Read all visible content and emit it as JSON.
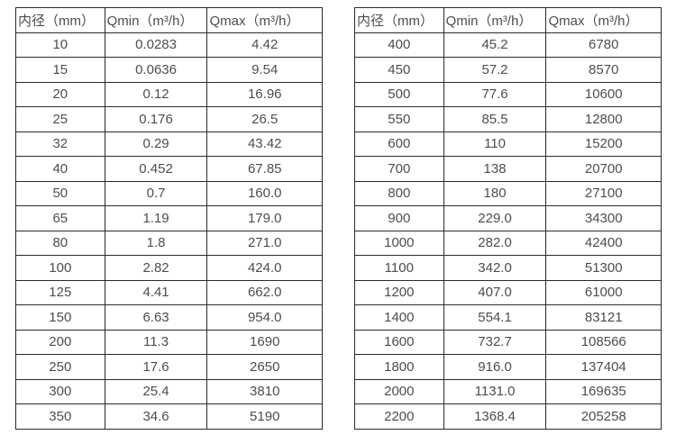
{
  "page": {
    "background_color": "#ffffff",
    "text_color": "#4d4d4d",
    "border_color": "#2b2b2b"
  },
  "tables": [
    {
      "name": "flow-spec-table-small-diameters",
      "headers": [
        "内径（mm）",
        "Qmin（m³/h）",
        "Qmax（m³/h）"
      ],
      "rows": [
        [
          "10",
          "0.0283",
          "4.42"
        ],
        [
          "15",
          "0.0636",
          "9.54"
        ],
        [
          "20",
          "0.12",
          "16.96"
        ],
        [
          "25",
          "0.176",
          "26.5"
        ],
        [
          "32",
          "0.29",
          "43.42"
        ],
        [
          "40",
          "0.452",
          "67.85"
        ],
        [
          "50",
          "0.7",
          "160.0"
        ],
        [
          "65",
          "1.19",
          "179.0"
        ],
        [
          "80",
          "1.8",
          "271.0"
        ],
        [
          "100",
          "2.82",
          "424.0"
        ],
        [
          "125",
          "4.41",
          "662.0"
        ],
        [
          "150",
          "6.63",
          "954.0"
        ],
        [
          "200",
          "11.3",
          "1690"
        ],
        [
          "250",
          "17.6",
          "2650"
        ],
        [
          "300",
          "25.4",
          "3810"
        ],
        [
          "350",
          "34.6",
          "5190"
        ]
      ]
    },
    {
      "name": "flow-spec-table-large-diameters",
      "headers": [
        "内径（mm）",
        "Qmin（m³/h）",
        "Qmax（m³/h）"
      ],
      "rows": [
        [
          "400",
          "45.2",
          "6780"
        ],
        [
          "450",
          "57.2",
          "8570"
        ],
        [
          "500",
          "77.6",
          "10600"
        ],
        [
          "550",
          "85.5",
          "12800"
        ],
        [
          "600",
          "110",
          "15200"
        ],
        [
          "700",
          "138",
          "20700"
        ],
        [
          "800",
          "180",
          "27100"
        ],
        [
          "900",
          "229.0",
          "34300"
        ],
        [
          "1000",
          "282.0",
          "42400"
        ],
        [
          "1100",
          "342.0",
          "51300"
        ],
        [
          "1200",
          "407.0",
          "61000"
        ],
        [
          "1400",
          "554.1",
          "83121"
        ],
        [
          "1600",
          "732.7",
          "108566"
        ],
        [
          "1800",
          "916.0",
          "137404"
        ],
        [
          "2000",
          "1131.0",
          "169635"
        ],
        [
          "2200",
          "1368.4",
          "205258"
        ]
      ]
    }
  ]
}
